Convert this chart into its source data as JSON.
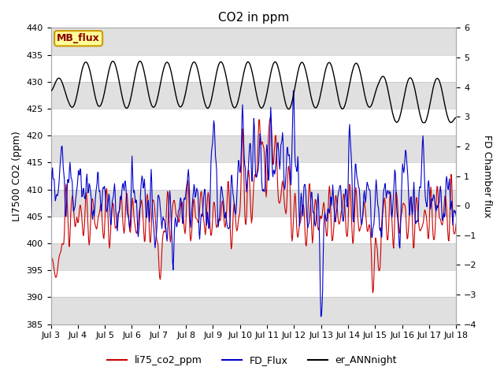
{
  "title": "CO2 in ppm",
  "ylabel_left": "LI7500 CO2 (ppm)",
  "ylabel_right": "FD Chamber flux",
  "ylim_left": [
    385,
    440
  ],
  "ylim_right": [
    -4.0,
    6.0
  ],
  "xlim": [
    0,
    360
  ],
  "xticklabels": [
    "Jul 3",
    "Jul 4",
    "Jul 5",
    "Jul 6",
    "Jul 7",
    "Jul 8",
    "Jul 9",
    "Jul 10",
    "Jul 11",
    "Jul 12",
    "Jul 13",
    "Jul 14",
    "Jul 15",
    "Jul 16",
    "Jul 17",
    "Jul 18"
  ],
  "xtick_positions": [
    0,
    24,
    48,
    72,
    96,
    120,
    144,
    168,
    192,
    216,
    240,
    264,
    288,
    312,
    336,
    360
  ],
  "annotation_text": "MB_flux",
  "annotation_bg": "#ffff99",
  "annotation_border": "#cc9900",
  "legend_labels": [
    "li75_co2_ppm",
    "FD_Flux",
    "er_ANNnight"
  ],
  "line_colors": [
    "#cc0000",
    "#0000cc",
    "#000000"
  ],
  "background_color": "#ffffff",
  "band_color": "#e0e0e0",
  "title_fontsize": 11,
  "axis_fontsize": 9,
  "tick_fontsize": 8
}
